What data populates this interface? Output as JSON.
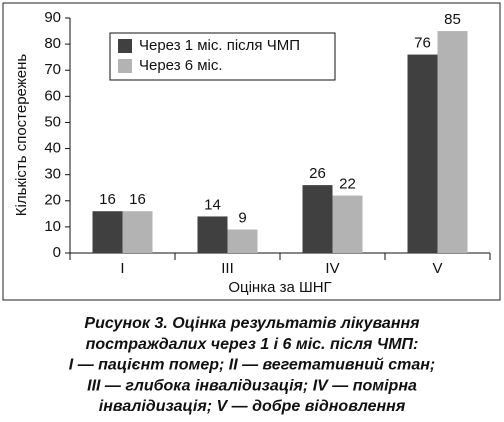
{
  "chart_data": {
    "type": "bar",
    "ylabel": "Кількість спостережень",
    "xlabel": "Оцінка за ШНГ",
    "categories": [
      "I",
      "III",
      "IV",
      "V"
    ],
    "series": [
      {
        "name": "Через 1 міс. після ЧМП",
        "color": "#404040",
        "values": [
          16,
          14,
          26,
          76
        ]
      },
      {
        "name": "Через 6 міс.",
        "color": "#b3b3b3",
        "values": [
          16,
          9,
          22,
          85
        ]
      }
    ],
    "ylim": [
      0,
      90
    ],
    "yticks": [
      0,
      10,
      20,
      30,
      40,
      50,
      60,
      70,
      80,
      90
    ],
    "legend": "upper left",
    "caption": [
      "Рисунок 3.  Оцінка результатів лікування",
      "постраждалих через 1 і 6 міс. після ЧМП:",
      "I — пацієнт помер; II — вегетативний стан;",
      "III — глибока інвалідизація; IV — помірна",
      "інвалідизація; V — добре відновлення"
    ]
  }
}
